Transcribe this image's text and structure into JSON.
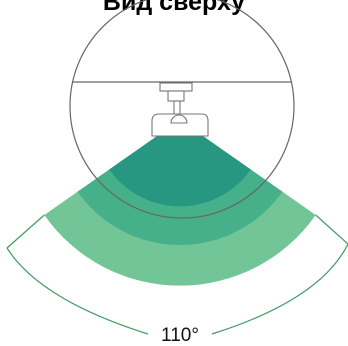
{
  "title": "Вид сверху",
  "angle_label": "110°",
  "colors": {
    "zone_far": "#72c596",
    "zone_mid": "#46b08b",
    "zone_near": "#279781",
    "outline": "#666666",
    "angle_line": "#3e9c62"
  },
  "icons": [
    "sensor-mount-icon"
  ]
}
